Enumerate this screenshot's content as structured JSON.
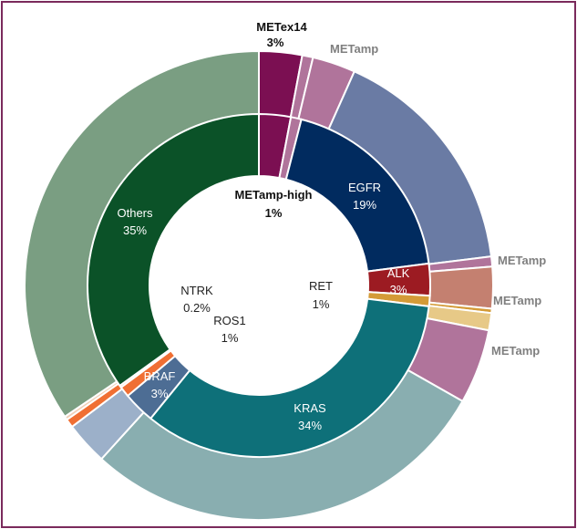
{
  "chart_data": {
    "type": "pie",
    "subtype": "two-level donut (sunburst)",
    "title": "",
    "inner_ring": [
      {
        "name": "METex14",
        "value": 3,
        "label": "METex14",
        "pct_label": "3%",
        "color": "#7b0f52"
      },
      {
        "name": "METamp-high",
        "value": 1,
        "label": "METamp-high",
        "pct_label": "1%",
        "color": "#b0749b"
      },
      {
        "name": "EGFR",
        "value": 19,
        "label": "EGFR",
        "pct_label": "19%",
        "color": "#012b5f"
      },
      {
        "name": "ALK",
        "value": 3,
        "label": "ALK",
        "pct_label": "3%",
        "color": "#9c1b22"
      },
      {
        "name": "RET",
        "value": 1,
        "label": "RET",
        "pct_label": "1%",
        "color": "#d49b37"
      },
      {
        "name": "KRAS",
        "value": 34,
        "label": "KRAS",
        "pct_label": "34%",
        "color": "#0e7079"
      },
      {
        "name": "BRAF",
        "value": 3,
        "label": "BRAF",
        "pct_label": "3%",
        "color": "#4d6d94"
      },
      {
        "name": "ROS1",
        "value": 1,
        "label": "ROS1",
        "pct_label": "1%",
        "color": "#f06f33"
      },
      {
        "name": "NTRK",
        "value": 0.2,
        "label": "NTRK",
        "pct_label": "0.2%",
        "color": "#f0a57a"
      },
      {
        "name": "Others",
        "value": 35,
        "label": "Others",
        "pct_label": "35%",
        "color": "#0b5228"
      }
    ],
    "outer_ring": [
      {
        "name": "METex14",
        "value": 3,
        "color": "#7b0f52"
      },
      {
        "name": "METamp-high",
        "value": 0.75,
        "color": "#b0749b"
      },
      {
        "name": "METamp",
        "value": 3,
        "color": "#b0749b",
        "label": "METamp"
      },
      {
        "name": "EGFR",
        "value": 16.5,
        "color": "#6a7ba4"
      },
      {
        "name": "METamp",
        "value": 0.7,
        "color": "#b0749b",
        "label": "METamp"
      },
      {
        "name": "ALK",
        "value": 2.9,
        "color": "#c48070"
      },
      {
        "name": "METamp",
        "value": 0.3,
        "color": "#d49b37",
        "label": "METamp"
      },
      {
        "name": "RET",
        "value": 1.2,
        "color": "#e7c987"
      },
      {
        "name": "METamp",
        "value": 5.2,
        "color": "#b0749b",
        "label": "METamp"
      },
      {
        "name": "KRAS",
        "value": 28.8,
        "color": "#89aeb0"
      },
      {
        "name": "BRAF",
        "value": 3,
        "color": "#9cb0c9"
      },
      {
        "name": "ROS1",
        "value": 0.6,
        "color": "#f06f33"
      },
      {
        "name": "NTRK",
        "value": 0.25,
        "color": "#f0d0b8"
      },
      {
        "name": "Others",
        "value": 34.8,
        "color": "#7a9e82"
      }
    ],
    "legend": "none"
  }
}
